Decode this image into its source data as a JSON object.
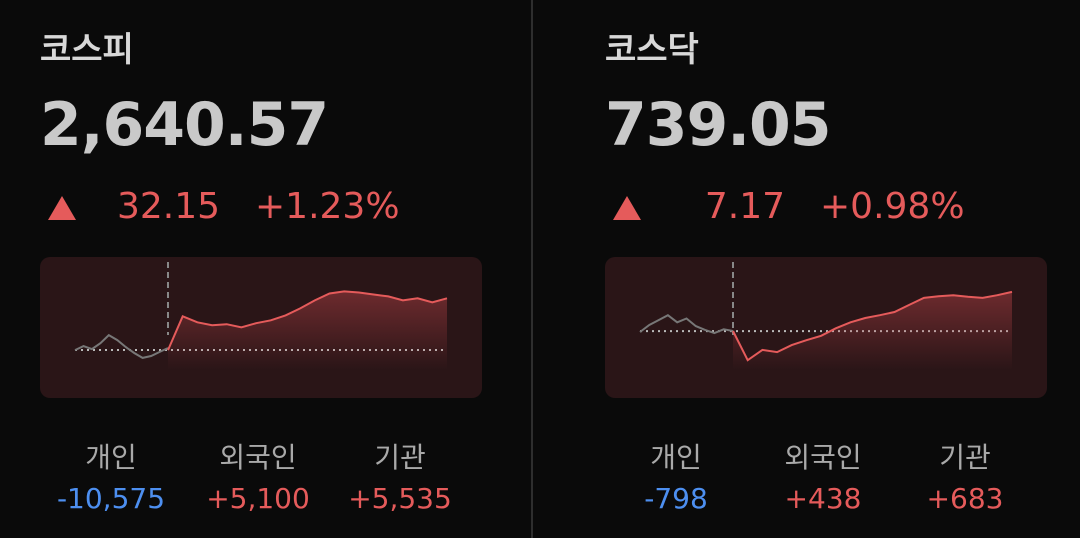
{
  "cards": [
    {
      "name": "코스피",
      "value": {
        "value": 2640.57,
        "label": "2,640.57"
      },
      "change": 32.15,
      "change_pct": {
        "value": 1.23,
        "label": "+1.23%"
      },
      "sparkline": {
        "ylim": [
          2596,
          2652
        ],
        "pre": [
          2608.4,
          2610.9,
          2609.0,
          2612.7,
          2617.7,
          2614.6,
          2610.3,
          2606.6,
          2603.5,
          2604.7,
          2607.2,
          2609.7
        ],
        "main": [
          2608.4,
          2629.4,
          2625.7,
          2623.9,
          2624.5,
          2622.6,
          2625.1,
          2626.9,
          2630.0,
          2634.3,
          2639.3,
          2643.6,
          2644.9,
          2644.2,
          2643.0,
          2641.8,
          2639.3,
          2640.6,
          2638.1,
          2640.6
        ]
      },
      "investors": [
        {
          "name": "개인",
          "value": -10575,
          "label": "-10,575"
        },
        {
          "name": "외국인",
          "value": 5100,
          "label": "+5,100"
        },
        {
          "name": "기관",
          "value": 5535,
          "label": "+5,535"
        }
      ]
    },
    {
      "name": "코스닥",
      "value": {
        "value": 739.05,
        "label": "739.05"
      },
      "change": 7.17,
      "change_pct": {
        "value": 0.98,
        "label": "+0.98%"
      },
      "sparkline": {
        "ylim": [
          724.7,
          741.3
        ],
        "pre": [
          731.7,
          733.0,
          733.9,
          734.8,
          733.5,
          734.2,
          732.8,
          732.1,
          731.5,
          732.2,
          731.9
        ],
        "main": [
          731.9,
          726.5,
          728.4,
          728.0,
          729.3,
          730.2,
          731.0,
          732.4,
          733.5,
          734.3,
          734.8,
          735.4,
          736.7,
          738.0,
          738.3,
          738.5,
          738.2,
          738.0,
          738.5,
          739.1
        ]
      },
      "investors": [
        {
          "name": "개인",
          "value": -798,
          "label": "-798"
        },
        {
          "name": "외국인",
          "value": 438,
          "label": "+438"
        },
        {
          "name": "기관",
          "value": 683,
          "label": "+683"
        }
      ]
    }
  ]
}
